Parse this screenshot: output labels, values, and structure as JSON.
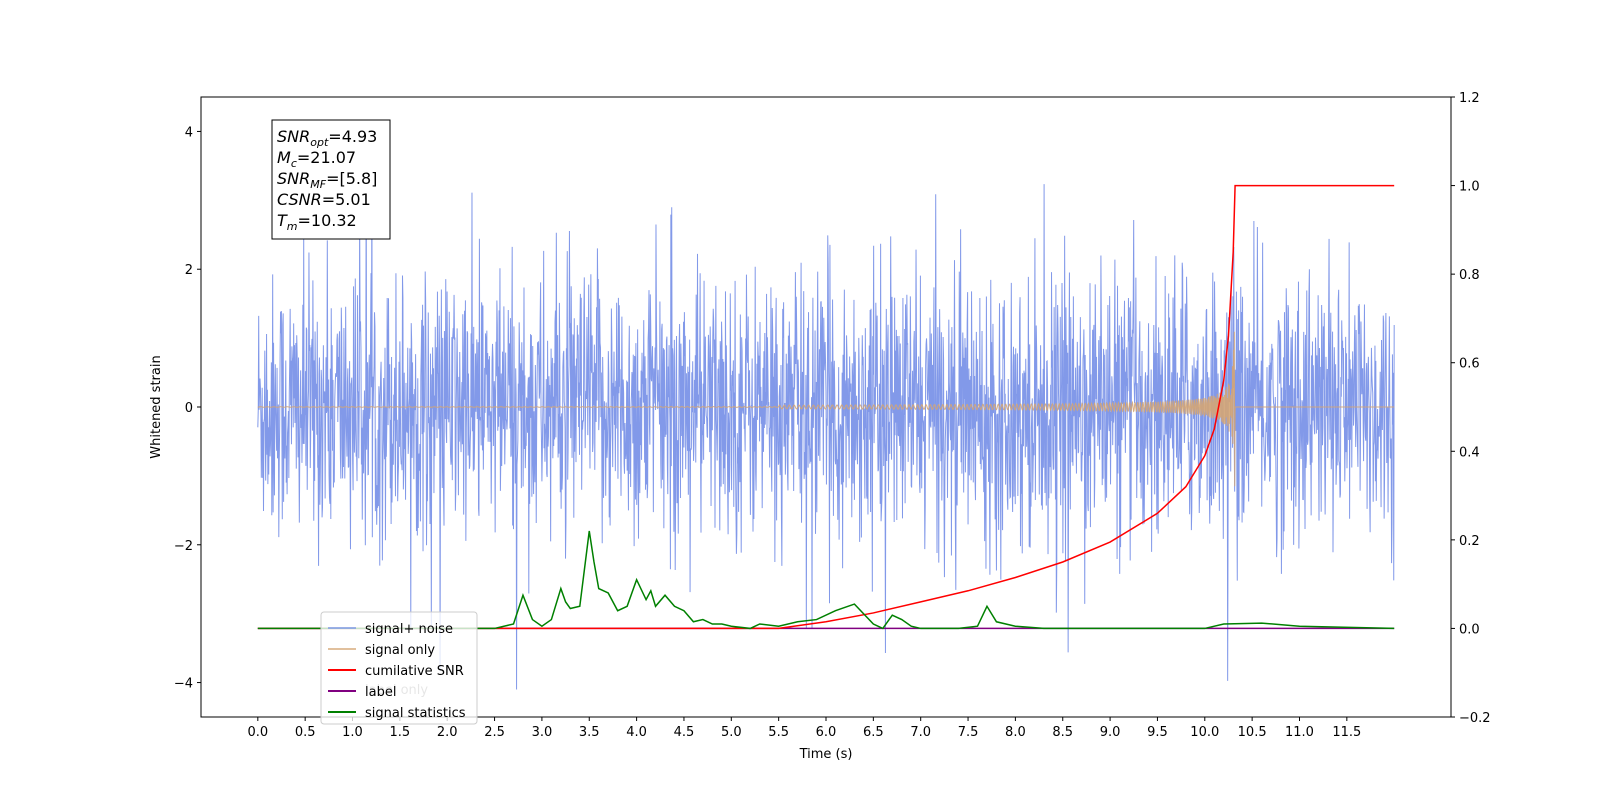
{
  "chart_data": {
    "type": "line",
    "xlabel": "Time (s)",
    "ylabel": "Whitened strain",
    "x_ticks": [
      0.0,
      0.5,
      1.0,
      1.5,
      2.0,
      2.5,
      3.0,
      3.5,
      4.0,
      4.5,
      5.0,
      5.5,
      6.0,
      6.5,
      7.0,
      7.5,
      8.0,
      8.5,
      9.0,
      9.5,
      10.0,
      10.5,
      11.0,
      11.5
    ],
    "x_tick_labels": [
      "0.0",
      "0.5",
      "1.0",
      "1.5",
      "2.0",
      "2.5",
      "3.0",
      "3.5",
      "4.0",
      "4.5",
      "5.0",
      "5.5",
      "6.0",
      "6.5",
      "7.0",
      "7.5",
      "8.0",
      "8.5",
      "9.0",
      "9.5",
      "10.0",
      "10.5",
      "11.0",
      "11.5"
    ],
    "xlim": [
      -0.6,
      12.6
    ],
    "ylim_left": [
      -4.5,
      4.5
    ],
    "y_ticks_left": [
      -4,
      -2,
      0,
      2,
      4
    ],
    "y_tick_labels_left": [
      "−4",
      "−2",
      "0",
      "2",
      "4"
    ],
    "ylim_right": [
      -0.2,
      1.2
    ],
    "y_ticks_right": [
      -0.2,
      0.0,
      0.2,
      0.4,
      0.6,
      0.8,
      1.0,
      1.2
    ],
    "y_tick_labels_right": [
      "−0.2",
      "0.0",
      "0.2",
      "0.4",
      "0.6",
      "0.8",
      "1.0",
      "1.2"
    ],
    "grid": false,
    "legend_position": "lower-left",
    "annotation_lines": [
      {
        "base": "SNR",
        "sub": "opt",
        "value": "=4.93"
      },
      {
        "base": "M",
        "sub": "c",
        "value": "=21.07"
      },
      {
        "base": "SNR",
        "sub": "MF",
        "value": "=[5.8]"
      },
      {
        "base": "CSNR",
        "sub": "",
        "value": "=5.01"
      },
      {
        "base": "T",
        "sub": "m",
        "value": "=10.32"
      }
    ],
    "series": [
      {
        "name": "signal+ noise",
        "axis": "left",
        "color": "#7b94e8",
        "description_values": {
          "t_start": 0.0,
          "t_end": 12.0,
          "typical_amplitude": 1.5,
          "max": 4.1,
          "min": -4.1
        }
      },
      {
        "name": "signal only",
        "axis": "left",
        "color": "#d4a574",
        "chirp": {
          "t_start": 0.0,
          "t_merger": 10.32,
          "peak_amplitude": 1.1,
          "min_amplitude": -1.15,
          "t_end": 12.0
        }
      },
      {
        "name": "cumilative SNR",
        "axis": "right",
        "color": "#ff0000",
        "x": [
          0.0,
          5.5,
          6.0,
          6.5,
          7.0,
          7.5,
          8.0,
          8.5,
          9.0,
          9.5,
          9.8,
          10.0,
          10.1,
          10.2,
          10.25,
          10.3,
          10.32,
          12.0
        ],
        "values": [
          0.0,
          0.0,
          0.015,
          0.035,
          0.06,
          0.085,
          0.115,
          0.15,
          0.195,
          0.26,
          0.32,
          0.39,
          0.45,
          0.56,
          0.66,
          0.85,
          1.0,
          1.0
        ]
      },
      {
        "name": "label",
        "axis": "right",
        "color": "#800080",
        "x": [
          0.0,
          12.0
        ],
        "values": [
          0.0,
          0.0
        ]
      },
      {
        "name": "label only",
        "axis": "right",
        "color": "#800080",
        "hidden_behind_legend": true
      },
      {
        "name": "signal statistics",
        "axis": "right",
        "color": "#008000",
        "x": [
          0.0,
          2.5,
          2.7,
          2.8,
          2.9,
          3.0,
          3.1,
          3.2,
          3.25,
          3.3,
          3.4,
          3.5,
          3.55,
          3.6,
          3.7,
          3.8,
          3.9,
          4.0,
          4.1,
          4.15,
          4.2,
          4.3,
          4.4,
          4.5,
          4.6,
          4.7,
          4.8,
          4.9,
          5.0,
          5.2,
          5.3,
          5.5,
          5.7,
          5.9,
          6.1,
          6.3,
          6.5,
          6.6,
          6.7,
          6.8,
          6.9,
          7.0,
          7.2,
          7.4,
          7.6,
          7.7,
          7.8,
          8.0,
          8.3,
          9.0,
          9.5,
          10.0,
          10.2,
          10.6,
          11.0,
          12.0
        ],
        "values": [
          0.0,
          0.0,
          0.01,
          0.075,
          0.02,
          0.005,
          0.02,
          0.09,
          0.06,
          0.045,
          0.05,
          0.22,
          0.15,
          0.09,
          0.08,
          0.04,
          0.05,
          0.11,
          0.065,
          0.085,
          0.05,
          0.075,
          0.05,
          0.04,
          0.015,
          0.02,
          0.01,
          0.01,
          0.005,
          0.0,
          0.01,
          0.005,
          0.015,
          0.02,
          0.04,
          0.055,
          0.01,
          0.0,
          0.03,
          0.02,
          0.005,
          0.0,
          0.0,
          0.0,
          0.005,
          0.05,
          0.015,
          0.005,
          0.0,
          0.0,
          0.0,
          0.0,
          0.01,
          0.012,
          0.005,
          0.0
        ]
      }
    ]
  }
}
